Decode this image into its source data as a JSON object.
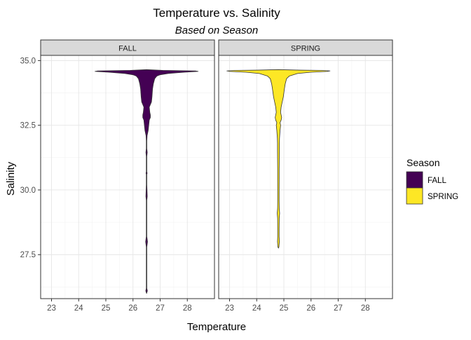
{
  "chart_data": {
    "type": "violin",
    "title": "Temperature vs. Salinity",
    "subtitle": "Based on Season",
    "xlabel": "Temperature",
    "ylabel": "Salinity",
    "xlim": [
      22.6,
      29.0
    ],
    "ylim": [
      25.8,
      35.2
    ],
    "x_ticks": [
      23,
      24,
      25,
      26,
      27,
      28
    ],
    "y_ticks": [
      27.5,
      30.0,
      32.5,
      35.0
    ],
    "x_tick_labels": [
      "23",
      "24",
      "25",
      "26",
      "27",
      "28"
    ],
    "y_tick_labels": [
      "27.5",
      "30.0",
      "32.5",
      "35.0"
    ],
    "grid": true,
    "legend": {
      "title": "Season",
      "position": "right",
      "entries": [
        {
          "label": "FALL",
          "color": "#440154"
        },
        {
          "label": "SPRING",
          "color": "#FDE725"
        }
      ]
    },
    "panels": [
      {
        "strip_label": "FALL",
        "color": "#440154",
        "center_temperature": 26.5,
        "profile": [
          [
            34.65,
            0.0
          ],
          [
            34.62,
            0.6
          ],
          [
            34.6,
            1.8
          ],
          [
            34.58,
            1.9
          ],
          [
            34.55,
            1.4
          ],
          [
            34.5,
            0.8
          ],
          [
            34.45,
            0.5
          ],
          [
            34.4,
            0.38
          ],
          [
            34.3,
            0.3
          ],
          [
            34.1,
            0.25
          ],
          [
            33.9,
            0.22
          ],
          [
            33.6,
            0.2
          ],
          [
            33.4,
            0.18
          ],
          [
            33.3,
            0.14
          ],
          [
            33.2,
            0.1
          ],
          [
            33.0,
            0.12
          ],
          [
            32.9,
            0.14
          ],
          [
            32.8,
            0.14
          ],
          [
            32.7,
            0.1
          ],
          [
            32.5,
            0.08
          ],
          [
            32.3,
            0.06
          ],
          [
            32.1,
            0.02
          ],
          [
            31.9,
            0.01
          ],
          [
            31.6,
            0.01
          ],
          [
            31.45,
            0.025
          ],
          [
            31.3,
            0.01
          ],
          [
            31.0,
            0.01
          ],
          [
            30.7,
            0.01
          ],
          [
            30.65,
            0.022
          ],
          [
            30.6,
            0.01
          ],
          [
            30.2,
            0.01
          ],
          [
            29.75,
            0.025
          ],
          [
            29.6,
            0.01
          ],
          [
            28.2,
            0.01
          ],
          [
            28.0,
            0.035
          ],
          [
            27.8,
            0.01
          ],
          [
            27.0,
            0.01
          ],
          [
            26.2,
            0.01
          ],
          [
            26.1,
            0.03
          ],
          [
            26.0,
            0.0
          ]
        ]
      },
      {
        "strip_label": "SPRING",
        "color": "#FDE725",
        "center_temperature": 24.8,
        "profile": [
          [
            34.65,
            0.0
          ],
          [
            34.63,
            0.8
          ],
          [
            34.62,
            1.5
          ],
          [
            34.6,
            1.9
          ],
          [
            34.58,
            1.8
          ],
          [
            34.55,
            1.2
          ],
          [
            34.5,
            0.7
          ],
          [
            34.4,
            0.4
          ],
          [
            34.3,
            0.3
          ],
          [
            34.1,
            0.25
          ],
          [
            33.9,
            0.22
          ],
          [
            33.6,
            0.18
          ],
          [
            33.4,
            0.14
          ],
          [
            33.2,
            0.1
          ],
          [
            33.0,
            0.08
          ],
          [
            32.9,
            0.1
          ],
          [
            32.8,
            0.12
          ],
          [
            32.7,
            0.1
          ],
          [
            32.6,
            0.06
          ],
          [
            32.5,
            0.08
          ],
          [
            32.3,
            0.06
          ],
          [
            32.0,
            0.04
          ],
          [
            31.8,
            0.035
          ],
          [
            31.5,
            0.035
          ],
          [
            31.0,
            0.03
          ],
          [
            30.8,
            0.028
          ],
          [
            30.4,
            0.028
          ],
          [
            30.0,
            0.026
          ],
          [
            29.6,
            0.026
          ],
          [
            29.3,
            0.03
          ],
          [
            29.1,
            0.045
          ],
          [
            28.9,
            0.03
          ],
          [
            28.5,
            0.026
          ],
          [
            28.2,
            0.026
          ],
          [
            28.0,
            0.035
          ],
          [
            27.9,
            0.026
          ],
          [
            27.8,
            0.02
          ],
          [
            27.75,
            0.0
          ]
        ]
      }
    ]
  }
}
